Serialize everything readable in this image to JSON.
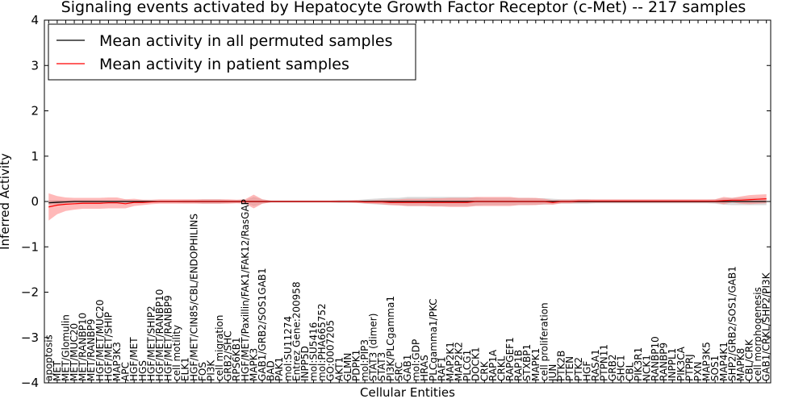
{
  "chart_data": {
    "type": "line",
    "title": "Signaling events activated by Hepatocyte Growth Factor Receptor (c-Met) -- 217 samples",
    "xlabel": "Cellular Entities",
    "ylabel": "Inferred Activity",
    "ylim": [
      -4,
      4
    ],
    "yticks": [
      -4,
      -3,
      -2,
      -1,
      0,
      1,
      2,
      3,
      4
    ],
    "ytick_labels": [
      "−4",
      "−3",
      "−2",
      "−1",
      "0",
      "1",
      "2",
      "3",
      "4"
    ],
    "legend_position": "upper-left",
    "categories": [
      "apoptosis",
      "MET",
      "MET/Glomulin",
      "MET/MUC20",
      "MET/RANBP10",
      "MET/RANBP9",
      "HGF/MET/MUC20",
      "HGF/MET/SHIP",
      "MAP3K3",
      "APC",
      "HGF/MET",
      "HGS",
      "HGF/MET/SHIP2",
      "HGF/MET/RANBP10",
      "HGF/MET/RANBP9",
      "cell motility",
      "ELK1",
      "HGF/MET/CIN85/CBL/ENDOPHILINS",
      "FOS",
      "PI3K",
      "cell migration",
      "GRB2/SHC",
      "RPS6KB1",
      "HGF/MET/Paxillin/FAK1/FAK12/RasGAP",
      "MAPK3",
      "GAB1/GRB2/SOS1GAB1",
      "BAD",
      "PAK1",
      "mol:SU11274",
      "Entrez Gene:200958",
      "INPP5D",
      "mol:SU5416",
      "mol:PHA665752",
      "GO:0007205",
      "AKT1",
      "GLMN",
      "PDPK1",
      "mol:PIP3",
      "STAT3 (dimer)",
      "STAT3",
      "PI3K/PLCgamma1",
      "SRC",
      "GAB1",
      "mol:GDP",
      "HRAS",
      "PLCgamma1/PKC",
      "RAF1",
      "MAP2K1",
      "MAP2K2",
      "PLCG1",
      "DOCK1",
      "CRK",
      "RAP1A",
      "CRKL",
      "RAPGEF1",
      "RAP1B",
      "STXBP1",
      "MAPK1",
      "cell proliferation",
      "JUN",
      "PTK2B",
      "PTEN",
      "PTK2",
      "HGF",
      "RASA1",
      "PTPN11",
      "GRB2",
      "SHC1",
      "CBL",
      "PIK3R1",
      "NCK1",
      "RANBP10",
      "RANBP9",
      "INPPL1",
      "PIK3CA",
      "PTPRJ",
      "PXN",
      "MAP3K5",
      "SOS1",
      "MAP4K1",
      "SHP2/GRB2/SOS1/GAB1",
      "MAPK8",
      "CBL/CRK",
      "cell morphogenesis",
      "GAB1/CRKL/SHP2/PI3K"
    ],
    "series": [
      {
        "name": "Mean activity in all permuted samples",
        "color": "#000000",
        "band_color": "#b4b4b4",
        "mean": [
          -0.03,
          -0.02,
          -0.01,
          0,
          0,
          0,
          0,
          0,
          0,
          0,
          0,
          0,
          0,
          0,
          0,
          0,
          0,
          0,
          0,
          0,
          0,
          0,
          0,
          0,
          0,
          0,
          0,
          0,
          0,
          0,
          0,
          0,
          0,
          0,
          0,
          0,
          0,
          0,
          0,
          0,
          0,
          0,
          0,
          0,
          0,
          0,
          0,
          0,
          0,
          0,
          0,
          0,
          0,
          0,
          0,
          0,
          0,
          0,
          0,
          0,
          0,
          0,
          0,
          0,
          0,
          0,
          0,
          0,
          0,
          0,
          0,
          0,
          0,
          0,
          0,
          0,
          0,
          0,
          0,
          0,
          0,
          0,
          0,
          0,
          0
        ],
        "band": [
          0.05,
          0.05,
          0.04,
          0.03,
          0.03,
          0.03,
          0.03,
          0.03,
          0.03,
          0.05,
          0.03,
          0.03,
          0.02,
          0.02,
          0.02,
          0.02,
          0.03,
          0.03,
          0.05,
          0.05,
          0.05,
          0.03,
          0.03,
          0.03,
          0.1,
          0.05,
          0.02,
          0.02,
          0.02,
          0.02,
          0.02,
          0.02,
          0.02,
          0.02,
          0.03,
          0.03,
          0.03,
          0.05,
          0.06,
          0.07,
          0.08,
          0.08,
          0.1,
          0.1,
          0.1,
          0.1,
          0.1,
          0.1,
          0.1,
          0.1,
          0.09,
          0.08,
          0.08,
          0.08,
          0.08,
          0.08,
          0.08,
          0.07,
          0.07,
          0.06,
          0.05,
          0.05,
          0.05,
          0.05,
          0.04,
          0.04,
          0.04,
          0.04,
          0.04,
          0.04,
          0.04,
          0.04,
          0.04,
          0.04,
          0.04,
          0.04,
          0.04,
          0.04,
          0.05,
          0.07,
          0.08,
          0.08,
          0.08,
          0.08,
          0.08
        ]
      },
      {
        "name": "Mean activity in patient samples",
        "color": "#ff0000",
        "band_color": "#ff8080",
        "mean": [
          -0.12,
          -0.08,
          -0.06,
          -0.05,
          -0.04,
          -0.04,
          -0.04,
          -0.03,
          -0.03,
          -0.05,
          -0.02,
          -0.02,
          -0.01,
          0,
          0,
          0,
          0,
          0,
          0,
          0,
          0,
          0,
          0,
          0,
          0,
          0,
          0,
          0,
          0,
          0,
          0,
          0,
          0,
          0,
          0,
          0,
          0,
          -0.01,
          -0.01,
          -0.01,
          -0.02,
          -0.02,
          -0.02,
          -0.02,
          -0.02,
          -0.02,
          -0.02,
          -0.02,
          -0.02,
          -0.02,
          0,
          0,
          0,
          0,
          0,
          0,
          0,
          0,
          0,
          -0.02,
          0,
          0,
          0.01,
          0.01,
          0.01,
          0.01,
          0.01,
          0.01,
          0.01,
          0.01,
          0.01,
          0.01,
          0.01,
          0.01,
          0.01,
          0.01,
          0.01,
          0.01,
          0.01,
          0.02,
          0.03,
          0.03,
          0.04,
          0.05,
          0.06
        ],
        "band": [
          0.3,
          0.2,
          0.15,
          0.13,
          0.12,
          0.12,
          0.12,
          0.12,
          0.12,
          0.1,
          0.08,
          0.06,
          0.05,
          0.05,
          0.05,
          0.05,
          0.05,
          0.05,
          0.05,
          0.05,
          0.05,
          0.05,
          0.04,
          0.05,
          0.15,
          0.05,
          0.02,
          0.02,
          0.02,
          0.02,
          0.02,
          0.02,
          0.02,
          0.02,
          0.02,
          0.02,
          0.03,
          0.03,
          0.04,
          0.05,
          0.06,
          0.07,
          0.08,
          0.08,
          0.08,
          0.09,
          0.09,
          0.1,
          0.1,
          0.1,
          0.1,
          0.1,
          0.1,
          0.1,
          0.1,
          0.08,
          0.08,
          0.08,
          0.06,
          0.05,
          0.04,
          0.04,
          0.04,
          0.04,
          0.04,
          0.04,
          0.04,
          0.04,
          0.04,
          0.04,
          0.04,
          0.04,
          0.04,
          0.04,
          0.04,
          0.04,
          0.04,
          0.04,
          0.04,
          0.08,
          0.05,
          0.08,
          0.1,
          0.1,
          0.1
        ]
      }
    ]
  }
}
